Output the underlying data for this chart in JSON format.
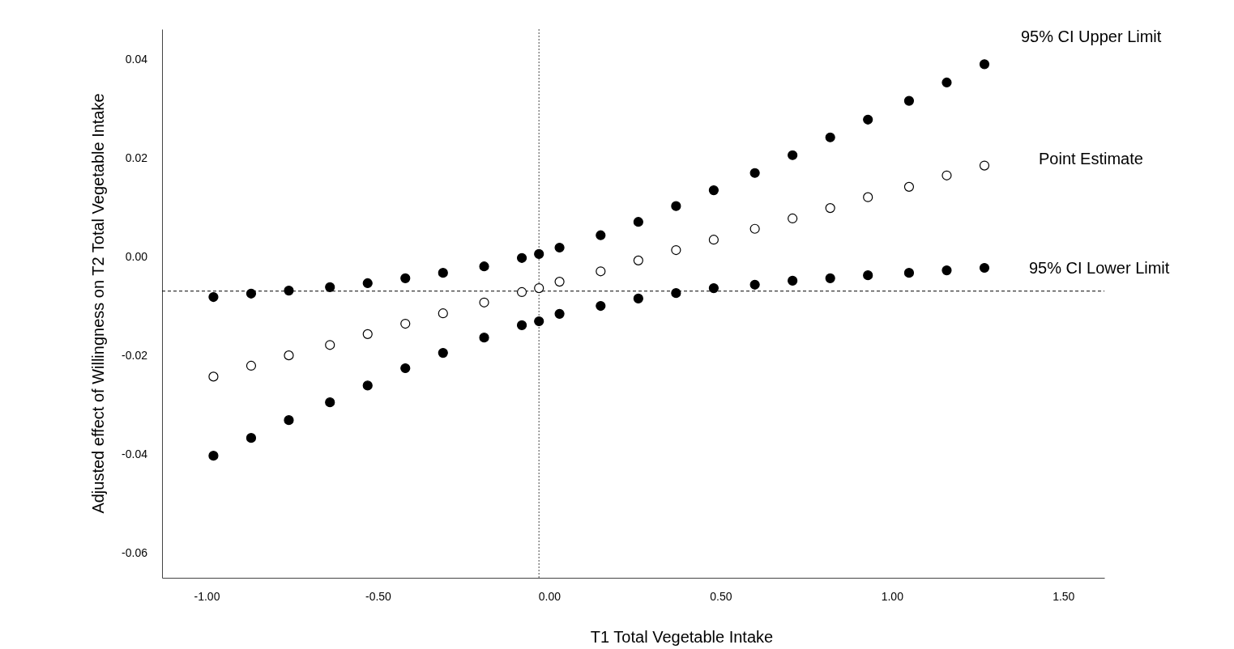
{
  "chart_data": {
    "type": "scatter",
    "xlabel": "T1 Total Vegetable Intake",
    "ylabel": "Adjusted effect of Willingness on T2 Total Vegetable Intake",
    "x": [
      -0.98,
      -0.87,
      -0.76,
      -0.64,
      -0.53,
      -0.42,
      -0.31,
      -0.19,
      -0.08,
      -0.03,
      0.03,
      0.15,
      0.26,
      0.37,
      0.48,
      0.6,
      0.71,
      0.82,
      0.93,
      1.05,
      1.16,
      1.27
    ],
    "series": [
      {
        "name": "95% CI Upper Limit",
        "color": "#000000",
        "values": [
          -0.0082,
          -0.0075,
          -0.0069,
          -0.0062,
          -0.0054,
          -0.0044,
          -0.0033,
          -0.002,
          -0.0003,
          0.0005,
          0.0018,
          0.0043,
          0.007,
          0.0102,
          0.0134,
          0.0169,
          0.0205,
          0.0241,
          0.0277,
          0.0315,
          0.0352,
          0.0389
        ]
      },
      {
        "name": "Point Estimate",
        "color": "#ffffff",
        "values": [
          -0.0243,
          -0.0221,
          -0.02,
          -0.0179,
          -0.0157,
          -0.0136,
          -0.0115,
          -0.0093,
          -0.0072,
          -0.0064,
          -0.0051,
          -0.003,
          -0.0008,
          0.0013,
          0.0034,
          0.0056,
          0.0077,
          0.0098,
          0.012,
          0.0141,
          0.0164,
          0.0184
        ]
      },
      {
        "name": "95% CI Lower Limit",
        "color": "#000000",
        "values": [
          -0.0403,
          -0.0367,
          -0.0331,
          -0.0295,
          -0.0261,
          -0.0226,
          -0.0195,
          -0.0164,
          -0.0139,
          -0.0131,
          -0.0116,
          -0.01,
          -0.0085,
          -0.0074,
          -0.0064,
          -0.0057,
          -0.0049,
          -0.0044,
          -0.0038,
          -0.0033,
          -0.0028,
          -0.0023
        ]
      }
    ],
    "xlim": [
      -1.13,
      1.62
    ],
    "xticks": [
      {
        "value": -1,
        "label": "-1.00"
      },
      {
        "value": -0.5,
        "label": "-0.50"
      },
      {
        "value": 0,
        "label": "0.00"
      },
      {
        "value": 0.5,
        "label": "0.50"
      },
      {
        "value": 1,
        "label": "1.00"
      },
      {
        "value": 1.5,
        "label": "1.50"
      }
    ],
    "ylim": [
      -0.065,
      0.046
    ],
    "yticks": [
      {
        "value": -0.06,
        "label": "-0.06"
      },
      {
        "value": -0.04,
        "label": "-0.04"
      },
      {
        "value": -0.02,
        "label": "-0.02"
      },
      {
        "value": 0,
        "label": "0.00"
      },
      {
        "value": 0.02,
        "label": "0.02"
      },
      {
        "value": 0.04,
        "label": "0.04"
      }
    ],
    "ref_lines": [
      {
        "axis": "x",
        "value": -0.03,
        "color": "#666666",
        "line_style": "dotted"
      },
      {
        "axis": "y",
        "value": -0.007,
        "color": "#000000",
        "line_style": "dashed"
      }
    ],
    "marker": "circle",
    "grid": false
  }
}
